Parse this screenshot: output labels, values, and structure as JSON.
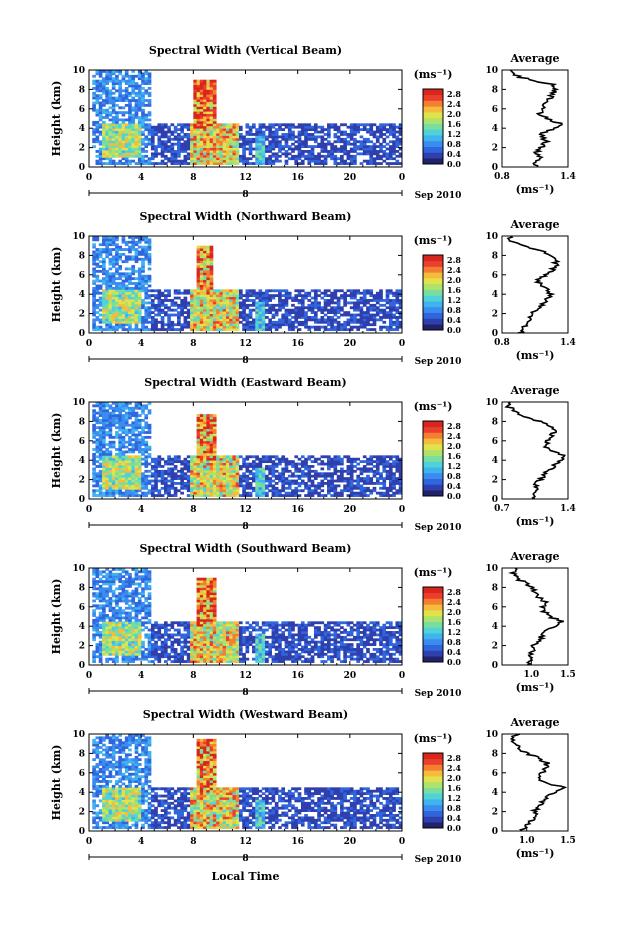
{
  "xlabel": "Local Time",
  "date_label": "Sep 2010",
  "colorbar_unit": "(ms⁻¹)",
  "avg_xlabel": "(ms⁻¹)",
  "avg_title": "Average",
  "colormap": [
    "#22226a",
    "#2f3fae",
    "#2f66dd",
    "#3b8cef",
    "#3eb3ee",
    "#4fd2d8",
    "#78dd9e",
    "#aee26a",
    "#e2e24a",
    "#f6ba3c",
    "#f47e30",
    "#ec3e2c",
    "#d8261e"
  ],
  "chart_data": [
    {
      "type": "heatmap",
      "title": "Spectral Width (Vertical Beam)",
      "ylabel": "Height (km)",
      "x_ticks": [
        "0",
        "4",
        "8",
        "12",
        "16",
        "20",
        "0"
      ],
      "x_sub_ticks": [
        "",
        "",
        "",
        "8",
        "",
        "",
        ""
      ],
      "y_ticks": [
        "0",
        "2",
        "4",
        "6",
        "8",
        "10"
      ],
      "xlim": [
        0,
        24
      ],
      "ylim": [
        0,
        10
      ],
      "colorbar_ticks": [
        "2.8",
        "2.4",
        "2.0",
        "1.6",
        "1.2",
        "0.8",
        "0.4",
        "0.0"
      ],
      "zlim": [
        0,
        3
      ],
      "features": [
        {
          "x": [
            0.3,
            4.8
          ],
          "y": [
            0.3,
            10.0
          ],
          "peak": 0.9
        },
        {
          "x": [
            1.0,
            4.0
          ],
          "y": [
            1.0,
            4.6
          ],
          "peak": 2.0
        },
        {
          "x": [
            7.8,
            11.6
          ],
          "y": [
            0.3,
            4.6
          ],
          "peak": 2.4
        },
        {
          "x": [
            8.0,
            9.8
          ],
          "y": [
            4.0,
            9.0
          ],
          "peak": 2.9
        },
        {
          "x": [
            12.8,
            13.4
          ],
          "y": [
            0.3,
            3.2
          ],
          "peak": 1.4
        },
        {
          "x": [
            4.8,
            24.0
          ],
          "y": [
            0.2,
            4.5
          ],
          "peak": 0.5
        }
      ],
      "average": {
        "xlim": [
          0.8,
          1.4
        ],
        "xticks": [
          "0.8",
          "1.4"
        ],
        "heights": [
          0,
          0.5,
          1,
          1.5,
          2,
          2.5,
          3,
          3.5,
          4,
          4.5,
          5,
          5.5,
          6,
          6.5,
          7,
          7.5,
          8,
          8.5,
          9,
          9.5,
          10
        ],
        "values": [
          1.12,
          1.1,
          1.14,
          1.12,
          1.15,
          1.2,
          1.18,
          1.16,
          1.3,
          1.32,
          1.2,
          1.15,
          1.18,
          1.2,
          1.24,
          1.26,
          1.28,
          1.25,
          1.05,
          0.9,
          0.85
        ]
      }
    },
    {
      "type": "heatmap",
      "title": "Spectral Width (Northward Beam)",
      "ylabel": "Height (km)",
      "x_ticks": [
        "0",
        "4",
        "8",
        "12",
        "16",
        "20",
        "0"
      ],
      "x_sub_ticks": [
        "",
        "",
        "",
        "8",
        "",
        "",
        ""
      ],
      "y_ticks": [
        "0",
        "2",
        "4",
        "6",
        "8",
        "10"
      ],
      "xlim": [
        0,
        24
      ],
      "ylim": [
        0,
        10
      ],
      "colorbar_ticks": [
        "2.8",
        "2.4",
        "2.0",
        "1.6",
        "1.2",
        "0.8",
        "0.4",
        "0.0"
      ],
      "zlim": [
        0,
        3
      ],
      "features": [
        {
          "x": [
            0.3,
            4.8
          ],
          "y": [
            0.3,
            10.0
          ],
          "peak": 0.9
        },
        {
          "x": [
            1.0,
            4.0
          ],
          "y": [
            1.0,
            4.6
          ],
          "peak": 2.0
        },
        {
          "x": [
            7.8,
            11.6
          ],
          "y": [
            0.3,
            4.6
          ],
          "peak": 2.3
        },
        {
          "x": [
            8.2,
            9.6
          ],
          "y": [
            4.0,
            9.0
          ],
          "peak": 2.8
        },
        {
          "x": [
            12.8,
            13.4
          ],
          "y": [
            0.3,
            3.2
          ],
          "peak": 1.4
        },
        {
          "x": [
            4.8,
            24.0
          ],
          "y": [
            0.2,
            4.5
          ],
          "peak": 0.5
        }
      ],
      "average": {
        "xlim": [
          0.8,
          1.4
        ],
        "xticks": [
          "0.8",
          "1.4"
        ],
        "heights": [
          0,
          0.5,
          1,
          1.5,
          2,
          2.5,
          3,
          3.5,
          4,
          4.5,
          5,
          5.5,
          6,
          6.5,
          7,
          7.5,
          8,
          8.5,
          9,
          9.5,
          10
        ],
        "values": [
          0.95,
          1.0,
          1.02,
          1.08,
          1.05,
          1.12,
          1.18,
          1.2,
          1.25,
          1.22,
          1.15,
          1.12,
          1.2,
          1.25,
          1.3,
          1.28,
          1.22,
          1.15,
          1.0,
          0.85,
          0.9
        ]
      }
    },
    {
      "type": "heatmap",
      "title": "Spectral Width (Eastward Beam)",
      "ylabel": "Height (km)",
      "x_ticks": [
        "0",
        "4",
        "8",
        "12",
        "16",
        "20",
        "0"
      ],
      "x_sub_ticks": [
        "",
        "",
        "",
        "8",
        "",
        "",
        ""
      ],
      "y_ticks": [
        "0",
        "2",
        "4",
        "6",
        "8",
        "10"
      ],
      "xlim": [
        0,
        24
      ],
      "ylim": [
        0,
        10
      ],
      "colorbar_ticks": [
        "2.8",
        "2.4",
        "2.0",
        "1.6",
        "1.2",
        "0.8",
        "0.4",
        "0.0"
      ],
      "zlim": [
        0,
        3
      ],
      "features": [
        {
          "x": [
            0.3,
            4.8
          ],
          "y": [
            0.3,
            10.0
          ],
          "peak": 0.9
        },
        {
          "x": [
            1.0,
            4.0
          ],
          "y": [
            1.0,
            4.6
          ],
          "peak": 2.0
        },
        {
          "x": [
            7.8,
            11.6
          ],
          "y": [
            0.3,
            4.6
          ],
          "peak": 2.3
        },
        {
          "x": [
            8.2,
            9.8
          ],
          "y": [
            4.0,
            8.8
          ],
          "peak": 2.8
        },
        {
          "x": [
            12.8,
            13.4
          ],
          "y": [
            0.3,
            3.2
          ],
          "peak": 1.4
        },
        {
          "x": [
            4.8,
            24.0
          ],
          "y": [
            0.2,
            4.5
          ],
          "peak": 0.5
        }
      ],
      "average": {
        "xlim": [
          0.7,
          1.4
        ],
        "xticks": [
          "0.7",
          "1.4"
        ],
        "heights": [
          0,
          0.5,
          1,
          1.5,
          2,
          2.5,
          3,
          3.5,
          4,
          4.5,
          5,
          5.5,
          6,
          6.5,
          7,
          7.5,
          8,
          8.5,
          9,
          9.5,
          10
        ],
        "values": [
          1.05,
          1.0,
          1.08,
          1.05,
          1.12,
          1.15,
          1.2,
          1.25,
          1.35,
          1.38,
          1.2,
          1.15,
          1.18,
          1.22,
          1.28,
          1.2,
          1.1,
          0.95,
          0.85,
          0.78,
          0.8
        ]
      }
    },
    {
      "type": "heatmap",
      "title": "Spectral Width (Southward Beam)",
      "ylabel": "Height (km)",
      "x_ticks": [
        "0",
        "4",
        "8",
        "12",
        "16",
        "20",
        "0"
      ],
      "x_sub_ticks": [
        "",
        "",
        "",
        "8",
        "",
        "",
        ""
      ],
      "y_ticks": [
        "0",
        "2",
        "4",
        "6",
        "8",
        "10"
      ],
      "xlim": [
        0,
        24
      ],
      "ylim": [
        0,
        10
      ],
      "colorbar_ticks": [
        "2.8",
        "2.4",
        "2.0",
        "1.6",
        "1.2",
        "0.8",
        "0.4",
        "0.0"
      ],
      "zlim": [
        0,
        3
      ],
      "features": [
        {
          "x": [
            0.3,
            4.8
          ],
          "y": [
            0.3,
            10.0
          ],
          "peak": 0.9
        },
        {
          "x": [
            1.0,
            4.0
          ],
          "y": [
            1.0,
            4.6
          ],
          "peak": 2.0
        },
        {
          "x": [
            7.8,
            11.6
          ],
          "y": [
            0.3,
            4.6
          ],
          "peak": 2.3
        },
        {
          "x": [
            8.2,
            9.8
          ],
          "y": [
            4.0,
            9.0
          ],
          "peak": 2.8
        },
        {
          "x": [
            12.8,
            13.4
          ],
          "y": [
            0.3,
            3.2
          ],
          "peak": 1.4
        },
        {
          "x": [
            4.8,
            24.0
          ],
          "y": [
            0.2,
            4.5
          ],
          "peak": 0.5
        }
      ],
      "average": {
        "xlim": [
          0.6,
          1.5
        ],
        "xticks": [
          "1.0",
          "1.5"
        ],
        "heights": [
          0,
          0.5,
          1,
          1.5,
          2,
          2.5,
          3,
          3.5,
          4,
          4.5,
          5,
          5.5,
          6,
          6.5,
          7,
          7.5,
          8,
          8.5,
          9,
          9.5,
          10
        ],
        "values": [
          0.95,
          1.0,
          0.98,
          1.05,
          1.02,
          1.1,
          1.15,
          1.2,
          1.3,
          1.4,
          1.25,
          1.18,
          1.15,
          1.2,
          1.1,
          1.05,
          1.0,
          0.9,
          0.8,
          0.75,
          0.78
        ]
      }
    },
    {
      "type": "heatmap",
      "title": "Spectral Width (Westward Beam)",
      "ylabel": "Height (km)",
      "x_ticks": [
        "0",
        "4",
        "8",
        "12",
        "16",
        "20",
        "0"
      ],
      "x_sub_ticks": [
        "",
        "",
        "",
        "8",
        "",
        "",
        ""
      ],
      "y_ticks": [
        "0",
        "2",
        "4",
        "6",
        "8",
        "10"
      ],
      "xlim": [
        0,
        24
      ],
      "ylim": [
        0,
        10
      ],
      "colorbar_ticks": [
        "2.8",
        "2.4",
        "2.0",
        "1.6",
        "1.2",
        "0.8",
        "0.4",
        "0.0"
      ],
      "zlim": [
        0,
        3
      ],
      "features": [
        {
          "x": [
            0.3,
            4.8
          ],
          "y": [
            0.3,
            10.0
          ],
          "peak": 0.9
        },
        {
          "x": [
            1.0,
            4.0
          ],
          "y": [
            1.0,
            4.6
          ],
          "peak": 2.0
        },
        {
          "x": [
            7.8,
            11.6
          ],
          "y": [
            0.3,
            4.6
          ],
          "peak": 2.3
        },
        {
          "x": [
            8.2,
            9.8
          ],
          "y": [
            4.0,
            9.4
          ],
          "peak": 2.8
        },
        {
          "x": [
            12.8,
            13.4
          ],
          "y": [
            0.3,
            3.2
          ],
          "peak": 1.4
        },
        {
          "x": [
            4.8,
            24.0
          ],
          "y": [
            0.2,
            4.5
          ],
          "peak": 0.5
        }
      ],
      "average": {
        "xlim": [
          0.7,
          1.5
        ],
        "xticks": [
          "1.0",
          "1.5"
        ],
        "heights": [
          0,
          0.5,
          1,
          1.5,
          2,
          2.5,
          3,
          3.5,
          4,
          4.5,
          5,
          5.5,
          6,
          6.5,
          7,
          7.5,
          8,
          8.5,
          9,
          9.5,
          10
        ],
        "values": [
          0.95,
          1.0,
          1.05,
          1.1,
          1.08,
          1.15,
          1.2,
          1.25,
          1.35,
          1.45,
          1.2,
          1.15,
          1.18,
          1.22,
          1.25,
          1.15,
          1.0,
          0.9,
          0.85,
          0.82,
          0.9
        ]
      }
    }
  ]
}
